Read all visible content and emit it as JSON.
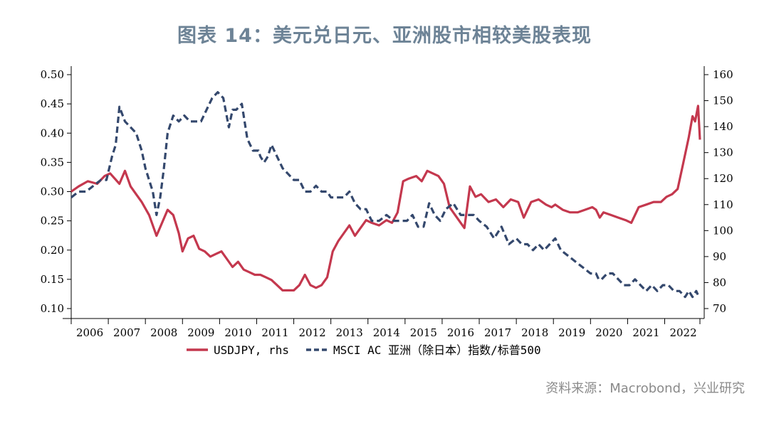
{
  "title": "图表 14：美元兑日元、亚洲股市相较美股表现",
  "source": "资料来源：Macrobond，兴业研究",
  "colors": {
    "usdjpy": "#c4384e",
    "msci": "#34486d",
    "axis": "#000000",
    "title": "#6d8396"
  },
  "chart_data": {
    "type": "line",
    "title": "",
    "x_ticks": [
      "2006",
      "2007",
      "2008",
      "2009",
      "2010",
      "2011",
      "2012",
      "2013",
      "2014",
      "2015",
      "2016",
      "2017",
      "2018",
      "2019",
      "2020",
      "2021",
      "2022"
    ],
    "xlim": [
      2006.0,
      2022.95
    ],
    "y_left": {
      "ticks": [
        "0.50",
        "0.45",
        "0.40",
        "0.35",
        "0.30",
        "0.25",
        "0.20",
        "0.15",
        "0.10"
      ],
      "ylim": [
        0.1,
        0.5
      ]
    },
    "y_right": {
      "ticks": [
        "160",
        "150",
        "140",
        "130",
        "120",
        "110",
        "100",
        "90",
        "80",
        "70"
      ],
      "ylim": [
        70,
        160
      ]
    },
    "legend": "bottom-center",
    "series": [
      {
        "name": "USDJPY, rhs",
        "axis": "right",
        "style": "solid",
        "x": [
          2006.0,
          2006.2,
          2006.45,
          2006.7,
          2006.9,
          2007.05,
          2007.3,
          2007.45,
          2007.6,
          2007.75,
          2007.9,
          2008.1,
          2008.3,
          2008.45,
          2008.6,
          2008.75,
          2008.9,
          2009.0,
          2009.15,
          2009.3,
          2009.45,
          2009.6,
          2009.75,
          2009.9,
          2010.05,
          2010.2,
          2010.35,
          2010.5,
          2010.65,
          2010.8,
          2010.95,
          2011.1,
          2011.25,
          2011.4,
          2011.55,
          2011.7,
          2011.85,
          2012.0,
          2012.15,
          2012.3,
          2012.45,
          2012.6,
          2012.75,
          2012.9,
          2013.05,
          2013.2,
          2013.35,
          2013.5,
          2013.65,
          2013.8,
          2013.95,
          2014.1,
          2014.3,
          2014.5,
          2014.65,
          2014.8,
          2014.95,
          2015.1,
          2015.3,
          2015.45,
          2015.6,
          2015.75,
          2015.9,
          2016.05,
          2016.2,
          2016.35,
          2016.5,
          2016.6,
          2016.75,
          2016.9,
          2017.05,
          2017.25,
          2017.45,
          2017.65,
          2017.85,
          2018.05,
          2018.2,
          2018.4,
          2018.6,
          2018.8,
          2018.95,
          2019.05,
          2019.25,
          2019.45,
          2019.65,
          2019.85,
          2020.05,
          2020.15,
          2020.25,
          2020.35,
          2020.55,
          2020.75,
          2020.95,
          2021.1,
          2021.3,
          2021.5,
          2021.7,
          2021.9,
          2022.05,
          2022.2,
          2022.35,
          2022.5,
          2022.65,
          2022.75,
          2022.82,
          2022.9,
          2022.95
        ],
        "y": [
          115,
          117,
          119,
          118,
          121,
          122,
          118,
          123,
          117,
          114,
          111,
          106,
          98,
          103,
          108,
          106,
          99,
          92,
          97,
          98,
          93,
          92,
          90,
          91,
          92,
          89,
          86,
          88,
          85,
          84,
          83,
          83,
          82,
          81,
          79,
          77,
          77,
          77,
          79,
          83,
          79,
          78,
          79,
          82,
          92,
          96,
          99,
          102,
          98,
          101,
          104,
          103,
          102,
          104,
          103,
          107,
          119,
          120,
          121,
          119,
          123,
          122,
          121,
          118,
          109,
          106,
          103,
          101,
          117,
          113,
          114,
          111,
          112,
          109,
          112,
          111,
          105,
          111,
          112,
          110,
          109,
          110,
          108,
          107,
          107,
          108,
          109,
          108,
          105,
          107,
          106,
          105,
          104,
          103,
          109,
          110,
          111,
          111,
          113,
          114,
          116,
          126,
          136,
          144,
          142,
          148,
          135
        ]
      },
      {
        "name": "MSCI AC 亚洲（除日本）指数/标普500",
        "axis": "left",
        "style": "dashed",
        "x": [
          2006.0,
          2006.2,
          2006.4,
          2006.6,
          2006.8,
          2006.95,
          2007.1,
          2007.2,
          2007.3,
          2007.45,
          2007.6,
          2007.75,
          2007.9,
          2008.0,
          2008.1,
          2008.2,
          2008.3,
          2008.4,
          2008.5,
          2008.6,
          2008.75,
          2008.9,
          2009.05,
          2009.2,
          2009.35,
          2009.5,
          2009.65,
          2009.8,
          2009.95,
          2010.1,
          2010.25,
          2010.35,
          2010.45,
          2010.6,
          2010.75,
          2010.9,
          2011.05,
          2011.1,
          2011.2,
          2011.3,
          2011.4,
          2011.55,
          2011.7,
          2011.85,
          2012.0,
          2012.15,
          2012.3,
          2012.45,
          2012.6,
          2012.75,
          2012.9,
          2013.0,
          2013.1,
          2013.2,
          2013.35,
          2013.5,
          2013.65,
          2013.8,
          2013.95,
          2014.1,
          2014.3,
          2014.5,
          2014.7,
          2014.9,
          2015.05,
          2015.2,
          2015.35,
          2015.5,
          2015.65,
          2015.8,
          2015.95,
          2016.1,
          2016.3,
          2016.5,
          2016.7,
          2016.85,
          2017.0,
          2017.2,
          2017.4,
          2017.6,
          2017.8,
          2018.0,
          2018.15,
          2018.3,
          2018.45,
          2018.6,
          2018.75,
          2018.9,
          2019.05,
          2019.2,
          2019.4,
          2019.6,
          2019.8,
          2020.0,
          2020.15,
          2020.22,
          2020.3,
          2020.45,
          2020.6,
          2020.75,
          2020.9,
          2021.05,
          2021.2,
          2021.35,
          2021.5,
          2021.65,
          2021.8,
          2021.95,
          2022.1,
          2022.25,
          2022.4,
          2022.55,
          2022.65,
          2022.75,
          2022.85,
          2022.92
        ],
        "y": [
          0.29,
          0.3,
          0.3,
          0.31,
          0.32,
          0.32,
          0.36,
          0.38,
          0.445,
          0.42,
          0.41,
          0.4,
          0.37,
          0.34,
          0.32,
          0.3,
          0.26,
          0.29,
          0.34,
          0.4,
          0.43,
          0.42,
          0.43,
          0.42,
          0.42,
          0.42,
          0.44,
          0.46,
          0.47,
          0.46,
          0.41,
          0.44,
          0.44,
          0.45,
          0.39,
          0.37,
          0.37,
          0.36,
          0.35,
          0.36,
          0.38,
          0.36,
          0.34,
          0.33,
          0.32,
          0.32,
          0.3,
          0.3,
          0.31,
          0.3,
          0.3,
          0.29,
          0.29,
          0.29,
          0.29,
          0.3,
          0.28,
          0.27,
          0.27,
          0.25,
          0.25,
          0.26,
          0.25,
          0.25,
          0.25,
          0.26,
          0.24,
          0.24,
          0.28,
          0.26,
          0.25,
          0.27,
          0.28,
          0.26,
          0.26,
          0.26,
          0.25,
          0.24,
          0.22,
          0.24,
          0.21,
          0.22,
          0.21,
          0.21,
          0.2,
          0.21,
          0.2,
          0.21,
          0.22,
          0.2,
          0.19,
          0.18,
          0.17,
          0.16,
          0.16,
          0.15,
          0.15,
          0.16,
          0.16,
          0.15,
          0.14,
          0.14,
          0.15,
          0.14,
          0.13,
          0.14,
          0.13,
          0.14,
          0.14,
          0.13,
          0.13,
          0.12,
          0.13,
          0.12,
          0.13,
          0.12
        ]
      }
    ]
  }
}
